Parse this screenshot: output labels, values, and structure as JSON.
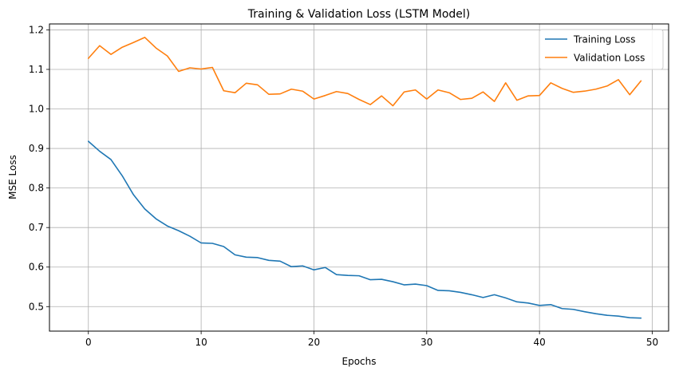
{
  "chart_data": {
    "type": "line",
    "title": "Training & Validation Loss (LSTM Model)",
    "xlabel": "Epochs",
    "ylabel": "MSE Loss",
    "xlim": [
      -3.45,
      51.45
    ],
    "ylim": [
      0.438,
      1.215
    ],
    "xticks": [
      0,
      10,
      20,
      30,
      40,
      50
    ],
    "yticks": [
      0.5,
      0.6,
      0.7,
      0.8,
      0.9,
      1.0,
      1.1,
      1.2
    ],
    "xtick_labels": [
      "0",
      "10",
      "20",
      "30",
      "40",
      "50"
    ],
    "ytick_labels": [
      "0.5",
      "0.6",
      "0.7",
      "0.8",
      "0.9",
      "1.0",
      "1.1",
      "1.2"
    ],
    "grid": true,
    "legend_position": "top-right",
    "x": [
      0,
      1,
      2,
      3,
      4,
      5,
      6,
      7,
      8,
      9,
      10,
      11,
      12,
      13,
      14,
      15,
      16,
      17,
      18,
      19,
      20,
      21,
      22,
      23,
      24,
      25,
      26,
      27,
      28,
      29,
      30,
      31,
      32,
      33,
      34,
      35,
      36,
      37,
      38,
      39,
      40,
      41,
      42,
      43,
      44,
      45,
      46,
      47,
      48,
      49
    ],
    "series": [
      {
        "name": "Training Loss",
        "color": "#1f77b4",
        "values": [
          0.918,
          0.893,
          0.872,
          0.831,
          0.783,
          0.747,
          0.722,
          0.704,
          0.692,
          0.678,
          0.661,
          0.66,
          0.652,
          0.631,
          0.625,
          0.624,
          0.617,
          0.615,
          0.601,
          0.603,
          0.593,
          0.599,
          0.581,
          0.579,
          0.578,
          0.568,
          0.569,
          0.563,
          0.555,
          0.557,
          0.553,
          0.541,
          0.54,
          0.536,
          0.53,
          0.523,
          0.53,
          0.522,
          0.512,
          0.509,
          0.503,
          0.505,
          0.495,
          0.493,
          0.487,
          0.482,
          0.478,
          0.476,
          0.472,
          0.471
        ]
      },
      {
        "name": "Validation Loss",
        "color": "#ff7f0e",
        "values": [
          1.128,
          1.16,
          1.138,
          1.156,
          1.168,
          1.181,
          1.154,
          1.134,
          1.095,
          1.104,
          1.101,
          1.105,
          1.046,
          1.041,
          1.065,
          1.061,
          1.037,
          1.038,
          1.05,
          1.045,
          1.025,
          1.034,
          1.044,
          1.039,
          1.024,
          1.011,
          1.033,
          1.008,
          1.043,
          1.048,
          1.025,
          1.048,
          1.041,
          1.024,
          1.027,
          1.043,
          1.019,
          1.066,
          1.022,
          1.033,
          1.034,
          1.066,
          1.052,
          1.042,
          1.045,
          1.05,
          1.058,
          1.074,
          1.036,
          1.071
        ]
      }
    ]
  }
}
